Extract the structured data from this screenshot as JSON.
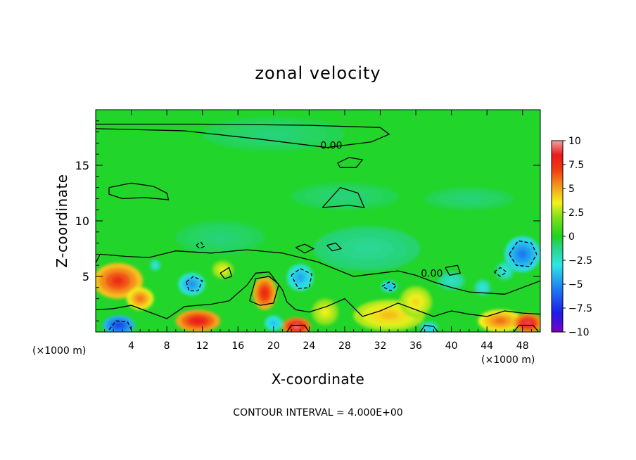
{
  "chart_data": {
    "type": "heatmap",
    "title": "zonal velocity",
    "xlabel": "X-coordinate",
    "ylabel": "Z-coordinate",
    "x_unit_left": "(×1000 m)",
    "x_unit_right": "(×1000 m)",
    "xlim": [
      0,
      50
    ],
    "ylim": [
      0,
      20
    ],
    "x_ticks": [
      4,
      8,
      12,
      16,
      20,
      24,
      28,
      32,
      36,
      40,
      44,
      48
    ],
    "x_tick_labels": [
      "4",
      "8",
      "12",
      "16",
      "20",
      "24",
      "28",
      "32",
      "36",
      "40",
      "44",
      "48"
    ],
    "y_ticks": [
      5,
      10,
      15
    ],
    "y_tick_labels": [
      "5",
      "10",
      "15"
    ],
    "colorbar": {
      "range": [
        -10,
        10
      ],
      "ticks": [
        10,
        7.5,
        5,
        2.5,
        0,
        -2.5,
        -5,
        -7.5,
        -10
      ],
      "tick_labels": [
        "10",
        "7.5",
        "5",
        "2.5",
        "0",
        "−2.5",
        "−5",
        "−7.5",
        "−10"
      ],
      "stops": [
        {
          "v": -10,
          "color": "#7a00c8"
        },
        {
          "v": -8,
          "color": "#1c1ce8"
        },
        {
          "v": -5.5,
          "color": "#1e7cf2"
        },
        {
          "v": -3,
          "color": "#2ee6e6"
        },
        {
          "v": -1,
          "color": "#28d37a"
        },
        {
          "v": 0,
          "color": "#1cd51c"
        },
        {
          "v": 2,
          "color": "#7fe01a"
        },
        {
          "v": 3.5,
          "color": "#f2f21a"
        },
        {
          "v": 5,
          "color": "#f5a51e"
        },
        {
          "v": 7,
          "color": "#f03a10"
        },
        {
          "v": 8.5,
          "color": "#e81a1a"
        },
        {
          "v": 10,
          "color": "#f7a0a0"
        }
      ]
    },
    "contour_labels": [
      {
        "x": 26.5,
        "z": 16.8,
        "text": "0.00"
      },
      {
        "x": 37.8,
        "z": 5.3,
        "text": "0.00"
      }
    ],
    "features": [
      {
        "x": 2.5,
        "z": 4.6,
        "value": 7.5,
        "rx": 2.8,
        "rz": 1.6
      },
      {
        "x": 5.0,
        "z": 3.0,
        "value": 6.0,
        "rx": 1.5,
        "rz": 1.0
      },
      {
        "x": 2.6,
        "z": 0.6,
        "value": -7.0,
        "rx": 1.8,
        "rz": 0.9
      },
      {
        "x": 11.5,
        "z": 1.0,
        "value": 8.5,
        "rx": 2.5,
        "rz": 1.0
      },
      {
        "x": 10.8,
        "z": 4.3,
        "value": -5.0,
        "rx": 1.5,
        "rz": 1.0
      },
      {
        "x": 14.3,
        "z": 5.6,
        "value": 3.5,
        "rx": 1.2,
        "rz": 0.8
      },
      {
        "x": 19.0,
        "z": 3.5,
        "value": 8.0,
        "rx": 1.3,
        "rz": 1.5
      },
      {
        "x": 22.6,
        "z": 0.5,
        "value": 9.5,
        "rx": 1.6,
        "rz": 0.8
      },
      {
        "x": 23.0,
        "z": 4.9,
        "value": -4.5,
        "rx": 1.5,
        "rz": 1.2
      },
      {
        "x": 20.0,
        "z": 0.8,
        "value": -4.0,
        "rx": 1.0,
        "rz": 0.7
      },
      {
        "x": 25.8,
        "z": 1.8,
        "value": 3.5,
        "rx": 1.5,
        "rz": 1.2
      },
      {
        "x": 33.0,
        "z": 1.5,
        "value": 4.5,
        "rx": 4.0,
        "rz": 1.4
      },
      {
        "x": 36.0,
        "z": 2.7,
        "value": 4.0,
        "rx": 1.8,
        "rz": 1.4
      },
      {
        "x": 33.0,
        "z": 4.1,
        "value": -4.5,
        "rx": 0.9,
        "rz": 0.5
      },
      {
        "x": 37.5,
        "z": 0.4,
        "value": -4.0,
        "rx": 1.0,
        "rz": 0.5
      },
      {
        "x": 45.5,
        "z": 1.0,
        "value": 6.0,
        "rx": 2.5,
        "rz": 1.0
      },
      {
        "x": 48.6,
        "z": 0.8,
        "value": 9.0,
        "rx": 1.6,
        "rz": 0.9
      },
      {
        "x": 48.0,
        "z": 7.0,
        "value": -5.5,
        "rx": 2.0,
        "rz": 1.6
      },
      {
        "x": 46.0,
        "z": 5.5,
        "value": -3.0,
        "rx": 1.0,
        "rz": 0.8
      },
      {
        "x": 43.5,
        "z": 4.0,
        "value": -3.0,
        "rx": 0.9,
        "rz": 0.7
      },
      {
        "x": 11.5,
        "z": 7.8,
        "value": -4.0,
        "rx": 0.6,
        "rz": 0.4
      },
      {
        "x": 6.7,
        "z": 6.0,
        "value": -3.0,
        "rx": 0.6,
        "rz": 0.5
      },
      {
        "x": 40.0,
        "z": 4.6,
        "value": -2.5,
        "rx": 1.5,
        "rz": 0.8
      },
      {
        "x": 30.5,
        "z": 7.5,
        "value": -1.5,
        "rx": 6.0,
        "rz": 2.0
      },
      {
        "x": 14.0,
        "z": 8.5,
        "value": -1.0,
        "rx": 5.0,
        "rz": 1.5
      },
      {
        "x": 28.0,
        "z": 12.2,
        "value": -1.0,
        "rx": 6.0,
        "rz": 1.2
      },
      {
        "x": 42.0,
        "z": 12.0,
        "value": -1.0,
        "rx": 5.0,
        "rz": 1.0
      },
      {
        "x": 20.0,
        "z": 17.8,
        "value": -1.0,
        "rx": 8.0,
        "rz": 1.5
      }
    ],
    "contours_solid": [
      [
        [
          0,
          18.7
        ],
        [
          12,
          18.7
        ],
        [
          24,
          18.6
        ],
        [
          32,
          18.4
        ],
        [
          33,
          17.8
        ],
        [
          31,
          17.1
        ],
        [
          26,
          16.6
        ],
        [
          19,
          17.3
        ],
        [
          10,
          18.1
        ],
        [
          0,
          18.3
        ]
      ],
      [
        [
          1.5,
          13.0
        ],
        [
          4,
          13.4
        ],
        [
          6.5,
          13.1
        ],
        [
          8,
          12.5
        ],
        [
          8.2,
          11.9
        ],
        [
          5.5,
          12.1
        ],
        [
          3,
          12.0
        ],
        [
          1.5,
          12.4
        ],
        [
          1.5,
          13.0
        ]
      ],
      [
        [
          25.5,
          11.2
        ],
        [
          27.5,
          13.0
        ],
        [
          29.5,
          12.5
        ],
        [
          30.2,
          11.2
        ],
        [
          28.5,
          11.4
        ],
        [
          25.5,
          11.2
        ]
      ],
      [
        [
          27.2,
          15.2
        ],
        [
          28.5,
          15.7
        ],
        [
          30.0,
          15.5
        ],
        [
          29.3,
          14.8
        ],
        [
          27.5,
          14.8
        ],
        [
          27.2,
          15.2
        ]
      ],
      [
        [
          0,
          6.2
        ],
        [
          0.5,
          7.0
        ],
        [
          3.5,
          6.8
        ],
        [
          6,
          6.7
        ],
        [
          9,
          7.3
        ],
        [
          13,
          7.1
        ],
        [
          17,
          7.4
        ],
        [
          21,
          7.1
        ],
        [
          25,
          6.3
        ],
        [
          29,
          5.0
        ],
        [
          32,
          5.3
        ],
        [
          34,
          5.5
        ],
        [
          36,
          5.1
        ],
        [
          38,
          4.5
        ],
        [
          40,
          4.0
        ],
        [
          42,
          3.6
        ],
        [
          46,
          3.4
        ],
        [
          48,
          4.0
        ],
        [
          50,
          4.6
        ]
      ],
      [
        [
          0,
          2.0
        ],
        [
          2,
          2.1
        ],
        [
          4,
          2.4
        ],
        [
          6,
          1.8
        ],
        [
          8,
          1.2
        ],
        [
          10,
          2.3
        ],
        [
          13,
          2.5
        ],
        [
          15,
          2.8
        ],
        [
          17,
          4.2
        ],
        [
          18,
          5.3
        ],
        [
          19.5,
          5.4
        ],
        [
          21,
          3.8
        ],
        [
          21.5,
          2.7
        ],
        [
          22.5,
          2.0
        ],
        [
          24,
          1.8
        ],
        [
          26,
          2.3
        ],
        [
          28,
          3.0
        ],
        [
          29,
          2.2
        ],
        [
          30,
          1.4
        ],
        [
          32,
          1.9
        ],
        [
          34,
          2.6
        ],
        [
          36,
          2.0
        ],
        [
          38,
          1.4
        ],
        [
          40,
          1.9
        ],
        [
          42,
          1.6
        ],
        [
          44,
          1.4
        ],
        [
          46,
          1.9
        ],
        [
          48,
          1.7
        ],
        [
          50,
          1.6
        ]
      ],
      [
        [
          17.3,
          2.8
        ],
        [
          18.0,
          4.8
        ],
        [
          19.5,
          5.0
        ],
        [
          20.6,
          4.3
        ],
        [
          20.0,
          2.6
        ],
        [
          18.5,
          2.4
        ],
        [
          17.3,
          2.8
        ]
      ],
      [
        [
          14.0,
          5.3
        ],
        [
          15.0,
          5.8
        ],
        [
          15.3,
          5.0
        ],
        [
          14.5,
          4.8
        ],
        [
          14.0,
          5.3
        ]
      ],
      [
        [
          22.5,
          7.6
        ],
        [
          23.5,
          7.9
        ],
        [
          24.5,
          7.5
        ],
        [
          23.5,
          7.1
        ],
        [
          22.5,
          7.6
        ]
      ],
      [
        [
          26.0,
          7.8
        ],
        [
          27.0,
          8.0
        ],
        [
          27.6,
          7.5
        ],
        [
          26.6,
          7.3
        ],
        [
          26.0,
          7.8
        ]
      ],
      [
        [
          39.3,
          5.8
        ],
        [
          40.7,
          6.0
        ],
        [
          41.0,
          5.3
        ],
        [
          39.8,
          5.1
        ],
        [
          39.3,
          5.8
        ]
      ],
      [
        [
          21.5,
          0
        ],
        [
          22.0,
          0.6
        ],
        [
          23.5,
          0.6
        ],
        [
          24.0,
          0
        ]
      ],
      [
        [
          36.5,
          0
        ],
        [
          37.0,
          0.6
        ],
        [
          38.0,
          0.5
        ],
        [
          38.5,
          0
        ]
      ],
      [
        [
          47.0,
          0
        ],
        [
          47.6,
          0.6
        ],
        [
          49.2,
          0.6
        ],
        [
          49.8,
          0
        ]
      ]
    ],
    "contours_dashed": [
      [
        [
          10.2,
          4.5
        ],
        [
          11.0,
          5.0
        ],
        [
          12.0,
          4.6
        ],
        [
          11.5,
          3.7
        ],
        [
          10.5,
          3.7
        ],
        [
          10.2,
          4.5
        ]
      ],
      [
        [
          22.0,
          5.1
        ],
        [
          23.0,
          5.7
        ],
        [
          24.3,
          5.2
        ],
        [
          24.0,
          4.0
        ],
        [
          22.8,
          3.9
        ],
        [
          22.0,
          5.1
        ]
      ],
      [
        [
          46.5,
          7.0
        ],
        [
          47.5,
          8.2
        ],
        [
          49.0,
          8.0
        ],
        [
          49.6,
          7.0
        ],
        [
          48.8,
          5.9
        ],
        [
          47.3,
          6.0
        ],
        [
          46.5,
          7.0
        ]
      ],
      [
        [
          1.5,
          0.2
        ],
        [
          2.3,
          1.0
        ],
        [
          3.6,
          0.9
        ],
        [
          4.0,
          0.2
        ]
      ],
      [
        [
          32.2,
          4.1
        ],
        [
          33.0,
          4.5
        ],
        [
          33.8,
          4.2
        ],
        [
          33.2,
          3.7
        ],
        [
          32.2,
          4.1
        ]
      ],
      [
        [
          11.3,
          7.8
        ],
        [
          11.8,
          8.1
        ],
        [
          12.2,
          7.7
        ],
        [
          11.7,
          7.5
        ],
        [
          11.3,
          7.8
        ]
      ],
      [
        [
          44.8,
          5.4
        ],
        [
          45.5,
          5.8
        ],
        [
          46.2,
          5.4
        ],
        [
          45.5,
          5.0
        ],
        [
          44.8,
          5.4
        ]
      ]
    ]
  },
  "footer": {
    "contour_interval": "CONTOUR INTERVAL = 4.000E+00"
  }
}
